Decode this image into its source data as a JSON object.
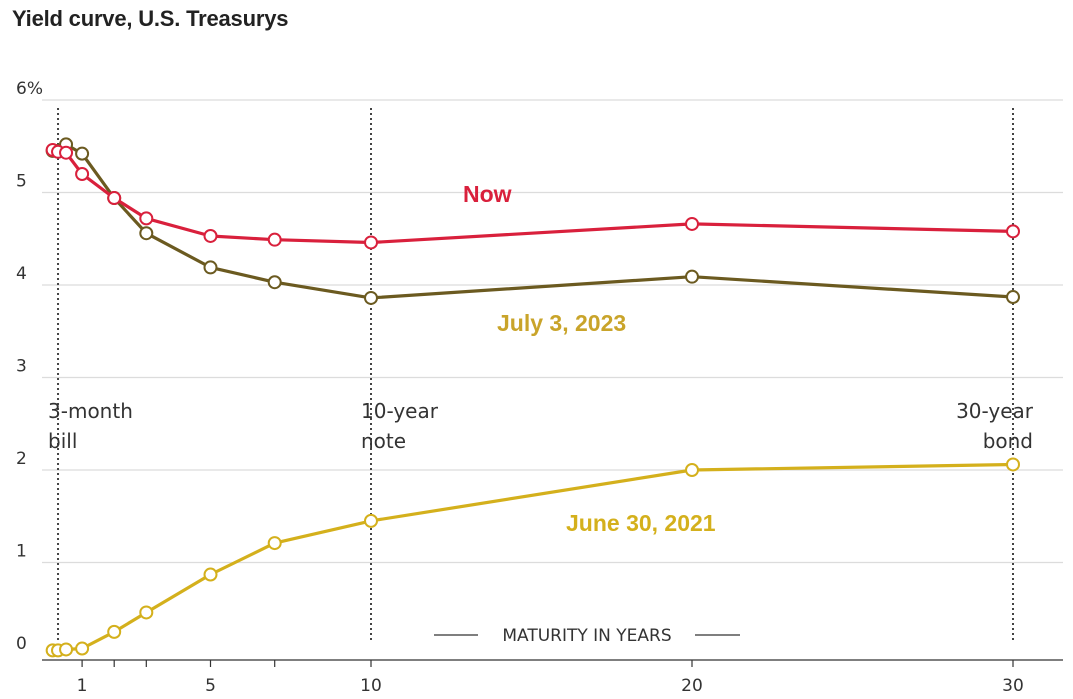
{
  "chart_data": {
    "type": "line",
    "title": "Yield curve, U.S. Treasurys",
    "xlabel": "MATURITY IN YEARS",
    "ylabel": "",
    "xlim": [
      0,
      31
    ],
    "ylim": [
      0,
      6
    ],
    "y_ticks": [
      {
        "value": 0,
        "label": "0"
      },
      {
        "value": 1,
        "label": "1"
      },
      {
        "value": 2,
        "label": "2"
      },
      {
        "value": 3,
        "label": "3"
      },
      {
        "value": 4,
        "label": "4"
      },
      {
        "value": 5,
        "label": "5"
      },
      {
        "value": 6,
        "label": "6%"
      }
    ],
    "x_ticks": [
      {
        "value": 1,
        "label": "1"
      },
      {
        "value": 2,
        "label": ""
      },
      {
        "value": 3,
        "label": ""
      },
      {
        "value": 5,
        "label": "5"
      },
      {
        "value": 7,
        "label": ""
      },
      {
        "value": 10,
        "label": "10"
      },
      {
        "value": 20,
        "label": "20"
      },
      {
        "value": 30,
        "label": "30"
      }
    ],
    "reference_lines": [
      {
        "x": 0.25,
        "line1": "3-month",
        "line2": "bill",
        "align": "left"
      },
      {
        "x": 10,
        "line1": "10-year",
        "line2": "note",
        "align": "left"
      },
      {
        "x": 30,
        "line1": "30-year",
        "line2": "bond",
        "align": "right"
      }
    ],
    "grid": true,
    "series": [
      {
        "name": "June 30, 2021",
        "color": "#d4b01c",
        "x": [
          0.083,
          0.25,
          0.5,
          1,
          2,
          3,
          5,
          7,
          10,
          20,
          30
        ],
        "values": [
          0.05,
          0.05,
          0.06,
          0.07,
          0.25,
          0.46,
          0.87,
          1.21,
          1.45,
          2.0,
          2.06
        ]
      },
      {
        "name": "July 3, 2023",
        "color": "#6b5a20",
        "label_color": "#c9a42a",
        "x": [
          0.083,
          0.25,
          0.5,
          1,
          2,
          3,
          5,
          7,
          10,
          20,
          30
        ],
        "values": [
          5.45,
          5.45,
          5.52,
          5.42,
          4.94,
          4.56,
          4.19,
          4.03,
          3.86,
          4.09,
          3.87
        ]
      },
      {
        "name": "Now",
        "color": "#d9203c",
        "x": [
          0.083,
          0.25,
          0.5,
          1,
          2,
          3,
          5,
          7,
          10,
          20,
          30
        ],
        "values": [
          5.46,
          5.44,
          5.43,
          5.2,
          4.94,
          4.72,
          4.53,
          4.49,
          4.46,
          4.66,
          4.58
        ]
      }
    ]
  }
}
